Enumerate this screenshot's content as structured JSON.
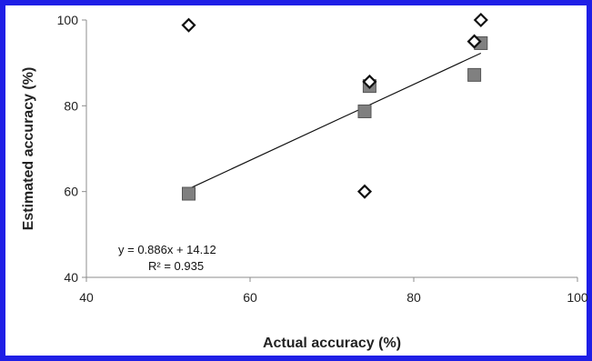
{
  "chart_data": {
    "type": "scatter",
    "title": "",
    "xlabel": "Actual accuracy (%)",
    "ylabel": "Estimated accuracy (%)",
    "xlim": [
      40,
      100
    ],
    "ylim": [
      40,
      100
    ],
    "xticks": [
      "40",
      "60",
      "80",
      "100"
    ],
    "yticks": [
      "40",
      "60",
      "80",
      "100"
    ],
    "grid": false,
    "legend": "none",
    "series": [
      {
        "marker": "square",
        "color": "#808080",
        "points": [
          {
            "x": 52.5,
            "y": 59.5
          },
          {
            "x": 74.0,
            "y": 78.7
          },
          {
            "x": 74.6,
            "y": 84.6
          },
          {
            "x": 87.4,
            "y": 87.2
          },
          {
            "x": 88.2,
            "y": 94.6
          }
        ]
      },
      {
        "marker": "diamond",
        "color": "#ffffff",
        "points": [
          {
            "x": 52.5,
            "y": 98.8
          },
          {
            "x": 74.0,
            "y": 60.0
          },
          {
            "x": 74.6,
            "y": 85.6
          },
          {
            "x": 87.4,
            "y": 95.0
          },
          {
            "x": 88.2,
            "y": 100.0
          }
        ]
      }
    ],
    "trendline": {
      "slope": 0.886,
      "intercept": 14.12,
      "x_range": [
        52.5,
        88.2
      ]
    },
    "annotations": {
      "equation": "y = 0.886x + 14.12",
      "r_squared": "R² = 0.935"
    }
  }
}
